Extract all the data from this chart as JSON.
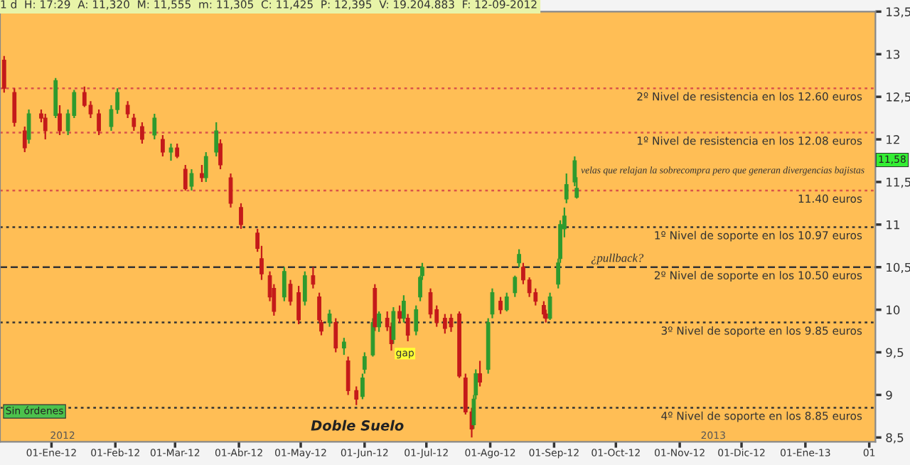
{
  "chart_data": {
    "type": "candlestick",
    "x": [
      "2011-12-09",
      "2011-12-14",
      "2011-12-19",
      "2011-12-21",
      "2011-12-27",
      "2011-12-29",
      "2012-01-03",
      "2012-01-05",
      "2012-01-09",
      "2012-01-12",
      "2012-01-17",
      "2012-01-20",
      "2012-01-24",
      "2012-01-30",
      "2012-02-02",
      "2012-02-07",
      "2012-02-10",
      "2012-02-14",
      "2012-02-20",
      "2012-02-24",
      "2012-02-28",
      "2012-03-02",
      "2012-03-06",
      "2012-03-09",
      "2012-03-14",
      "2012-03-16",
      "2012-03-21",
      "2012-03-23",
      "2012-03-28",
      "2012-04-02",
      "2012-04-10",
      "2012-04-12",
      "2012-04-16",
      "2012-04-18",
      "2012-04-23",
      "2012-04-26",
      "2012-04-30",
      "2012-05-03",
      "2012-05-07",
      "2012-05-10",
      "2012-05-11",
      "2012-05-15",
      "2012-05-18",
      "2012-05-22",
      "2012-05-24",
      "2012-05-28",
      "2012-05-31",
      "2012-06-01",
      "2012-06-05",
      "2012-06-06",
      "2012-06-08",
      "2012-06-12",
      "2012-06-14",
      "2012-06-15",
      "2012-06-18",
      "2012-06-20",
      "2012-06-22",
      "2012-06-26",
      "2012-06-28",
      "2012-06-29",
      "2012-07-03",
      "2012-07-06",
      "2012-07-10",
      "2012-07-13",
      "2012-07-17",
      "2012-07-20",
      "2012-07-23",
      "2012-07-24",
      "2012-07-25",
      "2012-07-27",
      "2012-07-31",
      "2012-08-02",
      "2012-08-06",
      "2012-08-09",
      "2012-08-13",
      "2012-08-15",
      "2012-08-17",
      "2012-08-20",
      "2012-08-23",
      "2012-08-27",
      "2012-08-28",
      "2012-08-30",
      "2012-09-03",
      "2012-09-04",
      "2012-09-06",
      "2012-09-07",
      "2012-09-11",
      "2012-09-12"
    ],
    "ohlc": [
      [
        12.93,
        12.98,
        12.55,
        12.6
      ],
      [
        12.55,
        12.6,
        12.15,
        12.2
      ],
      [
        12.1,
        12.15,
        11.85,
        11.9
      ],
      [
        12.0,
        12.35,
        11.95,
        12.3
      ],
      [
        12.3,
        12.35,
        12.2,
        12.25
      ],
      [
        12.25,
        12.3,
        12.0,
        12.1
      ],
      [
        12.28,
        12.72,
        12.25,
        12.69
      ],
      [
        12.3,
        12.4,
        12.05,
        12.1
      ],
      [
        12.1,
        12.35,
        12.05,
        12.3
      ],
      [
        12.28,
        12.58,
        12.25,
        12.55
      ],
      [
        12.55,
        12.62,
        12.38,
        12.4
      ],
      [
        12.4,
        12.45,
        12.25,
        12.3
      ],
      [
        12.3,
        12.35,
        12.05,
        12.1
      ],
      [
        12.15,
        12.4,
        12.1,
        12.35
      ],
      [
        12.35,
        12.6,
        12.3,
        12.55
      ],
      [
        12.4,
        12.45,
        12.25,
        12.3
      ],
      [
        12.25,
        12.3,
        12.1,
        12.15
      ],
      [
        12.15,
        12.2,
        11.95,
        12.0
      ],
      [
        12.05,
        12.3,
        12.0,
        12.25
      ],
      [
        12.0,
        12.05,
        11.8,
        11.85
      ],
      [
        11.85,
        11.95,
        11.75,
        11.9
      ],
      [
        11.9,
        11.95,
        11.78,
        11.8
      ],
      [
        11.65,
        11.7,
        11.4,
        11.42
      ],
      [
        11.45,
        11.65,
        11.4,
        11.6
      ],
      [
        11.6,
        11.7,
        11.5,
        11.55
      ],
      [
        11.55,
        11.85,
        11.5,
        11.8
      ],
      [
        11.85,
        12.2,
        11.8,
        12.1
      ],
      [
        11.95,
        12.0,
        11.65,
        11.7
      ],
      [
        11.55,
        11.6,
        11.2,
        11.25
      ],
      [
        11.2,
        11.25,
        10.95,
        11.0
      ],
      [
        10.9,
        10.95,
        10.68,
        10.72
      ],
      [
        10.6,
        10.75,
        10.35,
        10.42
      ],
      [
        10.4,
        10.45,
        10.1,
        10.15
      ],
      [
        10.25,
        10.3,
        9.93,
        9.98
      ],
      [
        10.15,
        10.5,
        10.1,
        10.45
      ],
      [
        10.3,
        10.35,
        10.05,
        10.1
      ],
      [
        10.2,
        10.28,
        9.83,
        9.88
      ],
      [
        10.1,
        10.45,
        10.05,
        10.4
      ],
      [
        10.4,
        10.5,
        10.25,
        10.3
      ],
      [
        10.15,
        10.2,
        9.85,
        9.88
      ],
      [
        9.85,
        9.88,
        9.7,
        9.75
      ],
      [
        9.85,
        10.0,
        9.8,
        9.95
      ],
      [
        9.85,
        9.9,
        9.5,
        9.55
      ],
      [
        9.55,
        9.67,
        9.47,
        9.62
      ],
      [
        9.4,
        9.45,
        9.0,
        9.05
      ],
      [
        9.05,
        9.1,
        8.88,
        8.95
      ],
      [
        8.98,
        9.25,
        8.95,
        9.2
      ],
      [
        9.3,
        9.5,
        9.25,
        9.45
      ],
      [
        9.47,
        9.9,
        9.45,
        9.85
      ],
      [
        10.25,
        10.3,
        9.75,
        9.8
      ],
      [
        9.8,
        9.98,
        9.74,
        9.95
      ],
      [
        9.9,
        9.98,
        9.75,
        9.8
      ],
      [
        9.8,
        9.85,
        9.52,
        9.6
      ],
      [
        9.65,
        10.03,
        9.6,
        9.98
      ],
      [
        9.98,
        10.05,
        9.85,
        9.9
      ],
      [
        9.9,
        10.17,
        9.85,
        10.1
      ],
      [
        9.9,
        9.95,
        9.63,
        9.7
      ],
      [
        9.75,
        10.05,
        9.7,
        10.0
      ],
      [
        10.15,
        10.4,
        10.1,
        10.38
      ],
      [
        10.4,
        10.55,
        10.35,
        10.5
      ],
      [
        10.2,
        10.25,
        9.9,
        9.95
      ],
      [
        10.0,
        10.05,
        9.8,
        9.85
      ],
      [
        9.9,
        9.95,
        9.72,
        9.78
      ],
      [
        9.9,
        9.95,
        9.74,
        9.8
      ],
      [
        9.95,
        9.98,
        9.2,
        9.22
      ],
      [
        9.2,
        9.25,
        8.77,
        8.8
      ],
      [
        8.8,
        8.85,
        8.5,
        8.6
      ],
      [
        8.65,
        9.0,
        8.6,
        8.95
      ],
      [
        9.0,
        9.3,
        8.95,
        9.25
      ],
      [
        9.25,
        9.4,
        9.1,
        9.15
      ],
      [
        9.3,
        9.9,
        9.25,
        9.85
      ],
      [
        9.95,
        10.25,
        9.9,
        10.2
      ],
      [
        10.1,
        10.15,
        9.95,
        10.0
      ],
      [
        10.0,
        10.2,
        9.98,
        10.15
      ],
      [
        10.2,
        10.4,
        10.15,
        10.38
      ],
      [
        10.55,
        10.71,
        10.5,
        10.65
      ],
      [
        10.5,
        10.55,
        10.3,
        10.35
      ],
      [
        10.35,
        10.38,
        10.15,
        10.2
      ],
      [
        10.2,
        10.25,
        10.05,
        10.1
      ],
      [
        10.05,
        10.1,
        9.9,
        9.95
      ],
      [
        9.95,
        10.0,
        9.85,
        9.9
      ],
      [
        9.9,
        10.2,
        9.88,
        10.15
      ],
      [
        10.3,
        10.6,
        10.25,
        10.55
      ],
      [
        10.6,
        11.05,
        10.55,
        11.0
      ],
      [
        10.95,
        11.2,
        10.85,
        11.1
      ],
      [
        11.3,
        11.6,
        11.25,
        11.47
      ],
      [
        11.5,
        11.8,
        11.45,
        11.75
      ],
      [
        11.32,
        11.555,
        11.305,
        11.425
      ]
    ],
    "colors": [
      "#c41a1a",
      "#c41a1a",
      "#c41a1a",
      "#2e9a2e",
      "#c41a1a",
      "#c41a1a",
      "#2e9a2e",
      "#c41a1a",
      "#2e9a2e",
      "#2e9a2e",
      "#c41a1a",
      "#c41a1a",
      "#c41a1a",
      "#2e9a2e",
      "#2e9a2e",
      "#c41a1a",
      "#c41a1a",
      "#c41a1a",
      "#2e9a2e",
      "#c41a1a",
      "#2e9a2e",
      "#c41a1a",
      "#c41a1a",
      "#2e9a2e",
      "#c41a1a",
      "#2e9a2e",
      "#2e9a2e",
      "#c41a1a",
      "#c41a1a",
      "#c41a1a",
      "#c41a1a",
      "#c41a1a",
      "#c41a1a",
      "#c41a1a",
      "#2e9a2e",
      "#c41a1a",
      "#c41a1a",
      "#2e9a2e",
      "#c41a1a",
      "#c41a1a",
      "#c41a1a",
      "#2e9a2e",
      "#c41a1a",
      "#2e9a2e",
      "#c41a1a",
      "#c41a1a",
      "#2e9a2e",
      "#2e9a2e",
      "#2e9a2e",
      "#c41a1a",
      "#2e9a2e",
      "#c41a1a",
      "#c41a1a",
      "#2e9a2e",
      "#c41a1a",
      "#2e9a2e",
      "#c41a1a",
      "#2e9a2e",
      "#2e9a2e",
      "#2e9a2e",
      "#c41a1a",
      "#c41a1a",
      "#c41a1a",
      "#c41a1a",
      "#c41a1a",
      "#c41a1a",
      "#c41a1a",
      "#2e9a2e",
      "#2e9a2e",
      "#c41a1a",
      "#2e9a2e",
      "#2e9a2e",
      "#c41a1a",
      "#2e9a2e",
      "#2e9a2e",
      "#2e9a2e",
      "#c41a1a",
      "#c41a1a",
      "#c41a1a",
      "#c41a1a",
      "#c41a1a",
      "#2e9a2e",
      "#2e9a2e",
      "#2e9a2e",
      "#2e9a2e",
      "#2e9a2e",
      "#2e9a2e",
      "#2e9a2e"
    ],
    "xlim": [
      "2011-12-07",
      "2013-02-04"
    ],
    "xticks": [
      {
        "value": "2012-01-01",
        "label": "01-Ene-12"
      },
      {
        "value": "2012-02-01",
        "label": "01-Feb-12"
      },
      {
        "value": "2012-03-01",
        "label": "01-Mar-12"
      },
      {
        "value": "2012-04-01",
        "label": "01-Abr-12"
      },
      {
        "value": "2012-05-01",
        "label": "01-May-12"
      },
      {
        "value": "2012-06-01",
        "label": "01-Jun-12"
      },
      {
        "value": "2012-07-01",
        "label": "01-Jul-12"
      },
      {
        "value": "2012-08-01",
        "label": "01-Ago-12"
      },
      {
        "value": "2012-09-01",
        "label": "01-Sep-12"
      },
      {
        "value": "2012-10-01",
        "label": "01-Oct-12"
      },
      {
        "value": "2012-11-01",
        "label": "01-Nov-12"
      },
      {
        "value": "2012-12-01",
        "label": "01-Dic-12"
      },
      {
        "value": "2013-01-01",
        "label": "01-Ene-13"
      },
      {
        "value": "2013-02-01",
        "label": "01"
      }
    ],
    "ylim": [
      8.45,
      13.5
    ],
    "yticks": [
      {
        "value": 8.5,
        "label": "8,5"
      },
      9,
      {
        "value": 9.5,
        "label": "9,5"
      },
      10,
      {
        "value": 10.5,
        "label": "10,5"
      },
      11,
      {
        "value": 11.5,
        "label": "11,5"
      },
      12,
      {
        "value": 12.5,
        "label": "12,5"
      },
      13,
      {
        "value": 13.5,
        "label": "13,5"
      }
    ],
    "grid": false,
    "ref_lines": [
      {
        "axis": "y",
        "value": 12.6,
        "label": "2º Nivel de resistencia en los 12.60 euros",
        "color": "#d9534a",
        "line_style": "dotted"
      },
      {
        "axis": "y",
        "value": 12.08,
        "label": "1º Nivel de resistencia en los 12.08 euros",
        "color": "#d9534a",
        "line_style": "dotted"
      },
      {
        "axis": "y",
        "value": 11.4,
        "label": "11.40 euros",
        "color": "#d9534a",
        "line_style": "dotted"
      },
      {
        "axis": "y",
        "value": 10.97,
        "label": "1º Nivel de soporte en los 10.97 euros",
        "color": "#333333",
        "line_style": "dotted"
      },
      {
        "axis": "y",
        "value": 10.5,
        "label": "2º Nivel de soporte en los 10.50 euros",
        "color": "#333333",
        "line_style": "dashed"
      },
      {
        "axis": "y",
        "value": 9.85,
        "label": "3º Nivel de soporte en los 9.85 euros",
        "color": "#333333",
        "line_style": "dotted"
      },
      {
        "axis": "y",
        "value": 8.85,
        "label": "4º Nivel de soporte en los 8.85 euros",
        "color": "#333333",
        "line_style": "dotted"
      }
    ],
    "annotations": [
      "1 d  H: 17:29  A: 11,320  M: 11,555  m: 11,305  C: 11,425  P: 12,395  V: 19.204.883  F: 12-09-2012",
      "Sin órdenes",
      "2012",
      "2013",
      "11,58",
      {
        "text": "velas que relajan la sobrecompra pero que generan divergencias bajistas",
        "x": "2012-09-14",
        "y": 11.63
      },
      "¿pullback?",
      "Doble Suelo",
      "gap"
    ]
  }
}
